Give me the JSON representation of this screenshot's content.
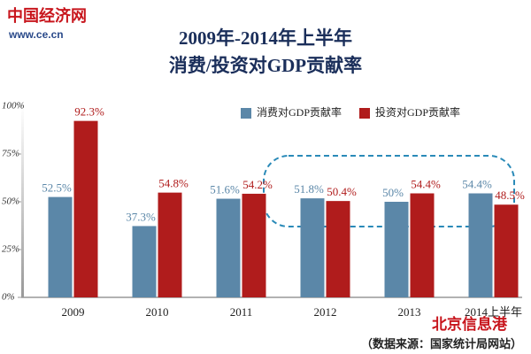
{
  "chart_data": {
    "type": "bar",
    "title": "2009年-2014年上半年",
    "subtitle": "消费/投资对GDP贡献率",
    "logo": "中国经济网",
    "website": "www.ce.cn",
    "source": "（数据来源：国家统计局网站）",
    "watermark": "北京信息港",
    "categories": [
      "2009",
      "2010",
      "2011",
      "2012",
      "2013",
      "2014上半年"
    ],
    "series": [
      {
        "name": "消费对GDP贡献率",
        "color": "#5b87a8",
        "values": [
          52.5,
          37.3,
          51.6,
          51.8,
          50,
          54.4
        ],
        "value_labels": [
          "52.5%",
          "37.3%",
          "51.6%",
          "51.8%",
          "50%",
          "54.4%"
        ]
      },
      {
        "name": "投资对GDP贡献率",
        "color": "#b01c1c",
        "values": [
          92.3,
          54.8,
          54.2,
          50.4,
          54.4,
          48.5
        ],
        "value_labels": [
          "92.3%",
          "54.8%",
          "54.2%",
          "50.4%",
          "54.4%",
          "48.5%"
        ]
      }
    ],
    "ylim": [
      0,
      100
    ],
    "yticks": [
      {
        "value": 0,
        "label": "0%"
      },
      {
        "value": 25,
        "label": "25%"
      },
      {
        "value": 50,
        "label": "50%"
      },
      {
        "value": 75,
        "label": "75%"
      },
      {
        "value": 100,
        "label": "100%"
      }
    ],
    "legend": "top-right"
  }
}
